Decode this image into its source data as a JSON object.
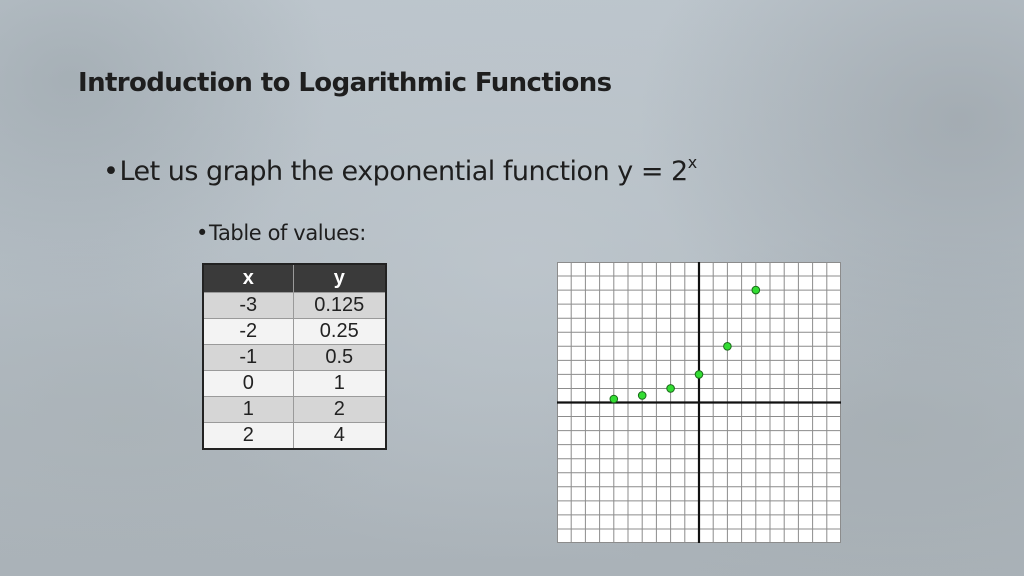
{
  "slide": {
    "title": "Introduction to Logarithmic Functions",
    "bullet_main": "Let us graph the exponential function y = 2",
    "bullet_main_exponent": "x",
    "bullet_sub": "Table of values:",
    "bullet_glyph": "•"
  },
  "colors": {
    "point_fill": "#33dd33",
    "point_stroke": "#1a6b1a",
    "axis": "#111111",
    "grid": "#8c8c8c",
    "table_header_bg": "#3a3a3a"
  },
  "table": {
    "headers": [
      "x",
      "y"
    ],
    "rows": [
      [
        "-3",
        "0.125"
      ],
      [
        "-2",
        "0.25"
      ],
      [
        "-1",
        "0.5"
      ],
      [
        "0",
        "1"
      ],
      [
        "1",
        "2"
      ],
      [
        "2",
        "4"
      ]
    ]
  },
  "chart_data": {
    "type": "scatter",
    "title": "",
    "xlabel": "",
    "ylabel": "",
    "xlim": [
      -5,
      5
    ],
    "ylim": [
      -5,
      5
    ],
    "grid": true,
    "x": [
      -3,
      -2,
      -1,
      0,
      1,
      2
    ],
    "y": [
      0.125,
      0.25,
      0.5,
      1,
      2,
      4
    ]
  }
}
